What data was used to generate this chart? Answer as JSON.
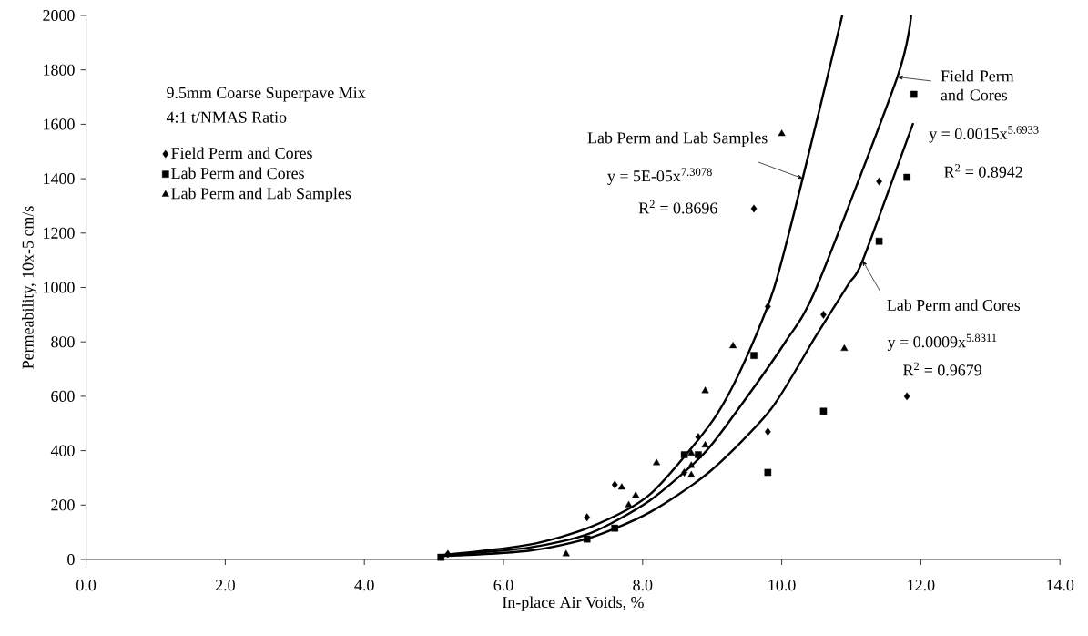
{
  "chart_data": {
    "type": "scatter",
    "title": "9.5mm Coarse Superpave Mix",
    "subtitle": "4:1 t/NMAS Ratio",
    "xlabel": "In-place Air Voids, %",
    "ylabel": "Permeability, 10x-5 cm/s",
    "xlim": [
      0,
      14
    ],
    "ylim": [
      0,
      2000
    ],
    "xticks": [
      {
        "value": 0,
        "label": "0.0"
      },
      {
        "value": 2,
        "label": "2.0"
      },
      {
        "value": 4,
        "label": "4.0"
      },
      {
        "value": 6,
        "label": "6.0"
      },
      {
        "value": 8,
        "label": "8.0"
      },
      {
        "value": 10,
        "label": "10.0"
      },
      {
        "value": 12,
        "label": "12.0"
      },
      {
        "value": 14,
        "label": "14.0"
      }
    ],
    "yticks": [
      0,
      200,
      400,
      600,
      800,
      1000,
      1200,
      1400,
      1600,
      1800,
      2000
    ],
    "grid": false,
    "legend": "top left",
    "series": [
      {
        "name": "Field Perm and Cores",
        "marker": "diamond",
        "color": "#000000",
        "x": [
          5.2,
          7.2,
          7.6,
          8.6,
          8.8,
          9.6,
          9.8,
          9.8,
          10.6,
          11.4,
          11.8
        ],
        "values": [
          20,
          155,
          275,
          320,
          450,
          1290,
          930,
          470,
          900,
          1390,
          600
        ]
      },
      {
        "name": "Lab Perm and Cores",
        "marker": "square",
        "color": "#000000",
        "x": [
          5.1,
          7.2,
          7.6,
          8.6,
          8.8,
          9.6,
          9.8,
          10.6,
          11.4,
          11.8,
          11.9
        ],
        "values": [
          8,
          75,
          115,
          385,
          385,
          750,
          320,
          545,
          1170,
          1405,
          1710
        ]
      },
      {
        "name": "Lab Perm and Lab Samples",
        "marker": "triangle",
        "color": "#000000",
        "x": [
          6.9,
          7.7,
          7.8,
          7.9,
          8.2,
          8.7,
          8.7,
          8.7,
          8.9,
          8.9,
          9.3,
          10.0,
          10.9
        ],
        "values": [
          20,
          265,
          200,
          235,
          355,
          390,
          345,
          310,
          420,
          620,
          785,
          1565,
          775
        ]
      },
      {
        "type": "line",
        "marker": "none",
        "color": "#000000",
        "x": [
          5.1,
          6.36,
          7.25,
          8.1,
          8.97,
          9.4,
          9.88,
          10.31,
          10.87
        ],
        "values": [
          15,
          54,
          119,
          238,
          497,
          691,
          990,
          1410,
          2000
        ]
      },
      {
        "type": "line",
        "marker": "none",
        "color": "#000000",
        "x": [
          5.1,
          6.36,
          7.25,
          8.1,
          8.88,
          9.4,
          10.05,
          10.5,
          11.66,
          11.86
        ],
        "values": [
          15,
          43,
          97,
          216,
          389,
          562,
          799,
          1000,
          1772,
          2000
        ]
      },
      {
        "type": "line",
        "marker": "none",
        "color": "#000000",
        "x": [
          5.1,
          6.36,
          7.25,
          8.1,
          8.97,
          9.84,
          10.49,
          10.97,
          11.16,
          11.89
        ],
        "values": [
          12,
          32,
          80,
          173,
          324,
          551,
          821,
          1016,
          1097,
          1604
        ]
      }
    ],
    "annotations": [
      {
        "text": "Lab Perm and Lab Samples",
        "x": 10.31,
        "y": 1400
      },
      "y = 5E-05x$^{7.3078}$",
      "R$^{2}$ = 0.8696",
      {
        "text": "Field Perm and Cores",
        "x": 11.66,
        "y": 1774
      },
      "y = 0.0015x$^{5.6933}$",
      "R$^{2}$ = 0.8942",
      {
        "text": "Lab Perm and Cores",
        "x": 11.16,
        "y": 1100
      },
      "y = 0.0009x$^{5.8311}$",
      "R$^{2}$ = 0.9679"
    ]
  }
}
